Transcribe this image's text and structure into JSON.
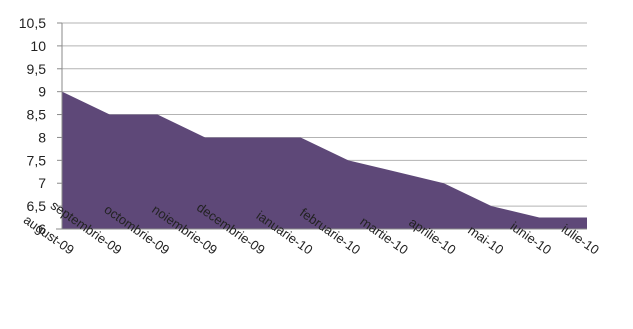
{
  "chart_data": {
    "type": "area",
    "categories": [
      "august-09",
      "septembrie-09",
      "octombrie-09",
      "noiembrie-09",
      "decembrie-09",
      "ianuarie-10",
      "februarie-10",
      "martie-10",
      "aprilie-10",
      "mai-10",
      "iunie-10",
      "iulie-10"
    ],
    "series": [
      {
        "values": [
          9.0,
          8.5,
          8.5,
          8.0,
          8.0,
          8.0,
          7.5,
          7.25,
          7.0,
          6.5,
          6.25,
          6.25
        ]
      }
    ],
    "title": "",
    "xlabel": "",
    "ylabel": "",
    "ylim": [
      6,
      10.5
    ],
    "yticks": [
      6,
      6.5,
      7,
      7.5,
      8,
      8.5,
      9,
      9.5,
      10,
      10.5
    ],
    "ytick_labels": [
      "6",
      "6,5",
      "7",
      "7,5",
      "8",
      "8,5",
      "9",
      "9,5",
      "10",
      "10,5"
    ],
    "grid": true,
    "legend": "none",
    "fill_color": "#5e4878"
  }
}
